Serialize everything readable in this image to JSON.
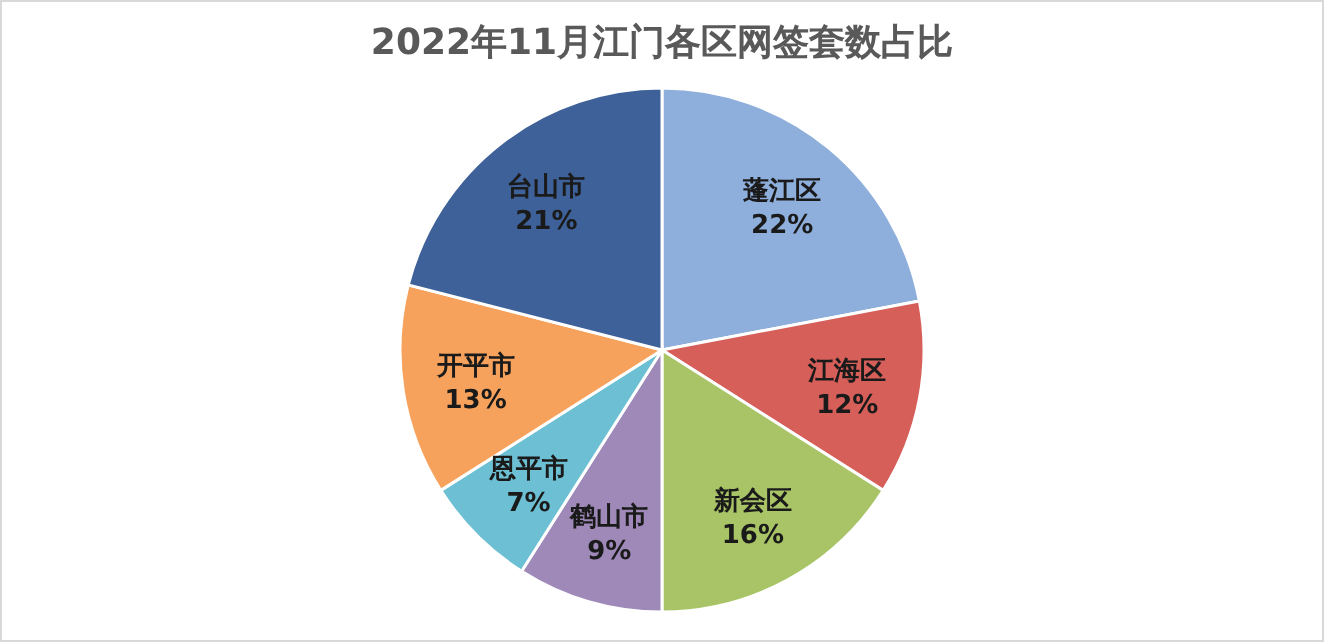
{
  "chart_data": {
    "type": "pie",
    "title": "2022年11月江门各区网签套数占比",
    "categories": [
      "蓬江区",
      "江海区",
      "新会区",
      "鹤山市",
      "恩平市",
      "开平市",
      "台山市"
    ],
    "values": [
      22,
      12,
      16,
      9,
      7,
      13,
      21
    ],
    "value_labels": [
      "22%",
      "12%",
      "16%",
      "9%",
      "7%",
      "13%",
      "21%"
    ],
    "colors": [
      "#8eaedb",
      "#d65f5a",
      "#a8c466",
      "#9e89b9",
      "#6dbfd3",
      "#f7a25c",
      "#3d6198"
    ]
  }
}
